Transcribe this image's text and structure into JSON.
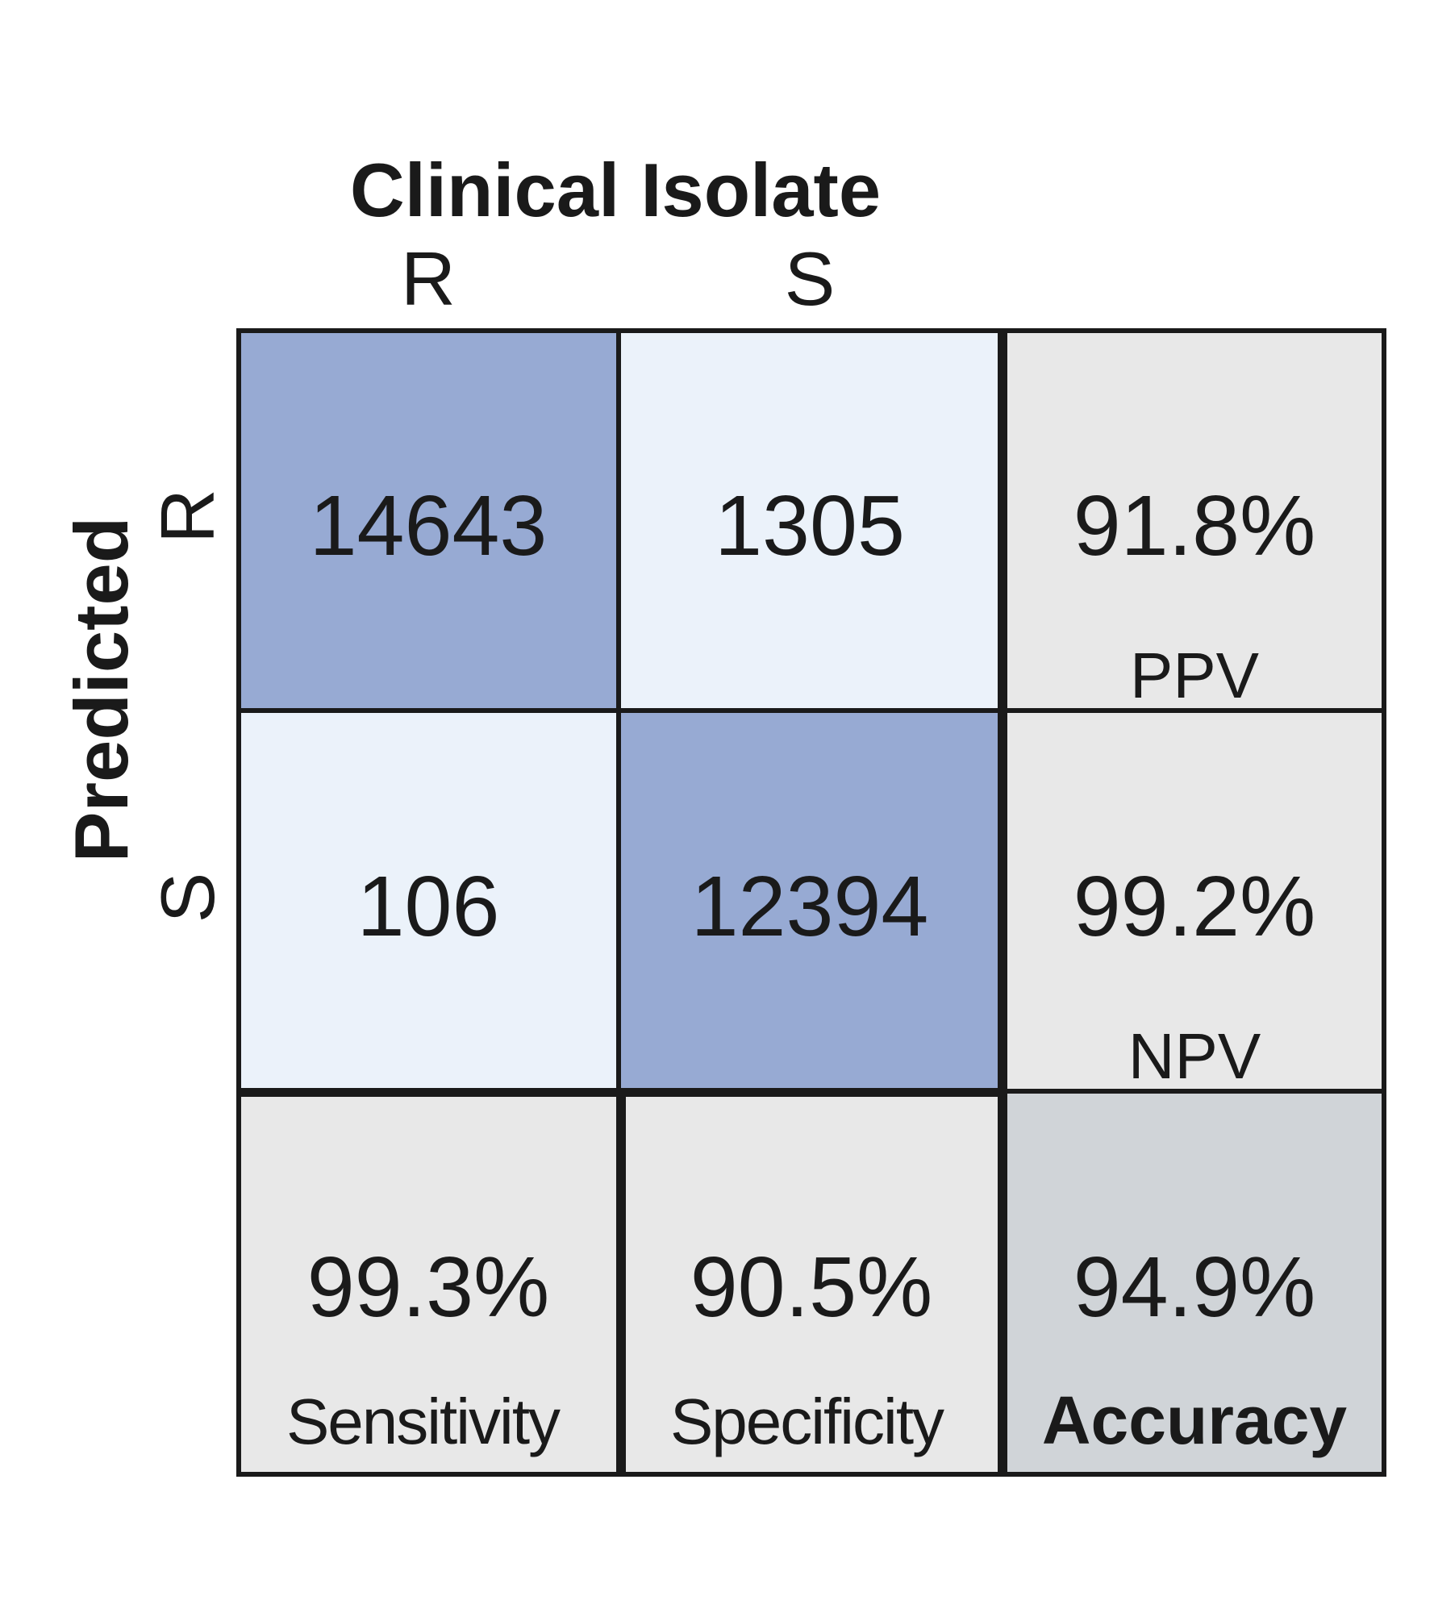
{
  "chart_data": {
    "type": "table",
    "title": "",
    "column_axis_label": "Clinical Isolate",
    "row_axis_label": "Predicted",
    "columns": [
      "R",
      "S"
    ],
    "rows": [
      "R",
      "S"
    ],
    "matrix": [
      [
        14643,
        1305
      ],
      [
        106,
        12394
      ]
    ],
    "row_metrics": [
      {
        "value": "91.8%",
        "label": "PPV"
      },
      {
        "value": "99.2%",
        "label": "NPV"
      }
    ],
    "column_metrics": [
      {
        "value": "99.3%",
        "label": "Sensitivity"
      },
      {
        "value": "90.5%",
        "label": "Specificity"
      }
    ],
    "overall_metric": {
      "value": "94.9%",
      "label": "Accuracy"
    },
    "colors": {
      "diagonal": "#97aad3",
      "off_diagonal": "#ebf2fa",
      "metric": "#e8e8e8",
      "overall": "#d0d4d8",
      "grid_line": "#1a1a1a",
      "text": "#1a1a1a"
    }
  }
}
